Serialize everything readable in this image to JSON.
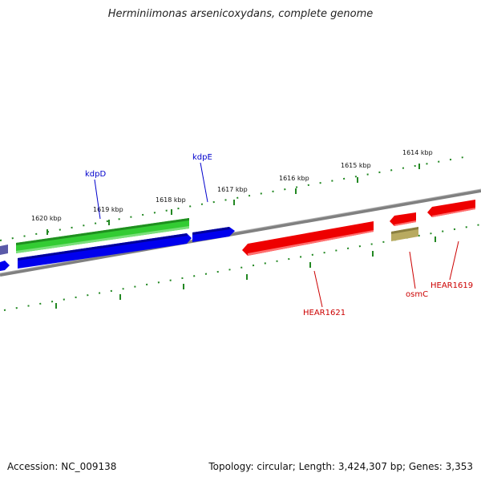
{
  "title": "Herminiimonas arsenicoxydans, complete genome",
  "footer": {
    "accession": "Accession: NC_009138",
    "summary": "Topology: circular; Length: 3,424,307 bp; Genes: 3,353"
  },
  "scale": {
    "labels": [
      "1620 kbp",
      "1619 kbp",
      "1618 kbp",
      "1617 kbp",
      "1616 kbp",
      "1615 kbp",
      "1614 kbp"
    ]
  },
  "genes": {
    "kdpD": "kdpD",
    "kdpE": "kdpE",
    "HEAR1621": "HEAR1621",
    "osmC": "osmC",
    "HEAR1619": "HEAR1619"
  },
  "colors": {
    "backbone": "#808080",
    "green_gene": "#33cc33",
    "blue_gene": "#0000ee",
    "red_gene": "#ee0000",
    "olive_gene": "#b8aa60",
    "purple_gene": "#5a5aa8",
    "tick": "#228822",
    "blue_label": "#0000cc",
    "red_label": "#cc0000"
  }
}
